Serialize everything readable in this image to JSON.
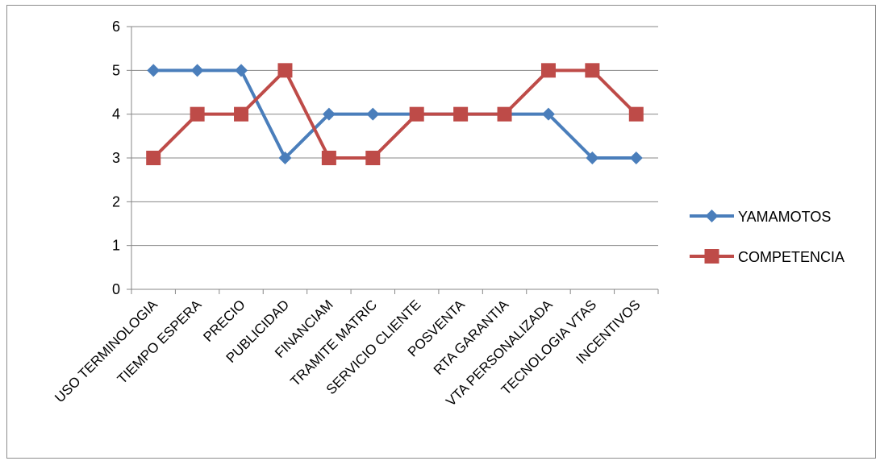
{
  "chart_data": {
    "type": "line",
    "categories": [
      "USO TERMINOLOGIA",
      "TIEMPO ESPERA",
      "PRECIO",
      "PUBLICIDAD",
      "FINANCIAM",
      "TRAMITE MATRIC",
      "SERVICIO CLIENTE",
      "POSVENTA",
      "RTA GARANTIA",
      "VTA PERSONALIZADA",
      "TECNOLOGIA VTAS",
      "INCENTIVOS"
    ],
    "series": [
      {
        "name": "YAMAMOTOS",
        "color": "#4a7ebb",
        "marker": "diamond",
        "values": [
          5,
          5,
          5,
          3,
          4,
          4,
          4,
          4,
          4,
          4,
          3,
          3
        ]
      },
      {
        "name": "COMPETENCIA",
        "color": "#be4b48",
        "marker": "square",
        "values": [
          3,
          4,
          4,
          5,
          3,
          3,
          4,
          4,
          4,
          5,
          5,
          4
        ]
      }
    ],
    "ylim": [
      0,
      6
    ],
    "yticks": [
      "0",
      "1",
      "2",
      "3",
      "4",
      "5",
      "6"
    ],
    "grid": true,
    "legend_position": "right"
  }
}
